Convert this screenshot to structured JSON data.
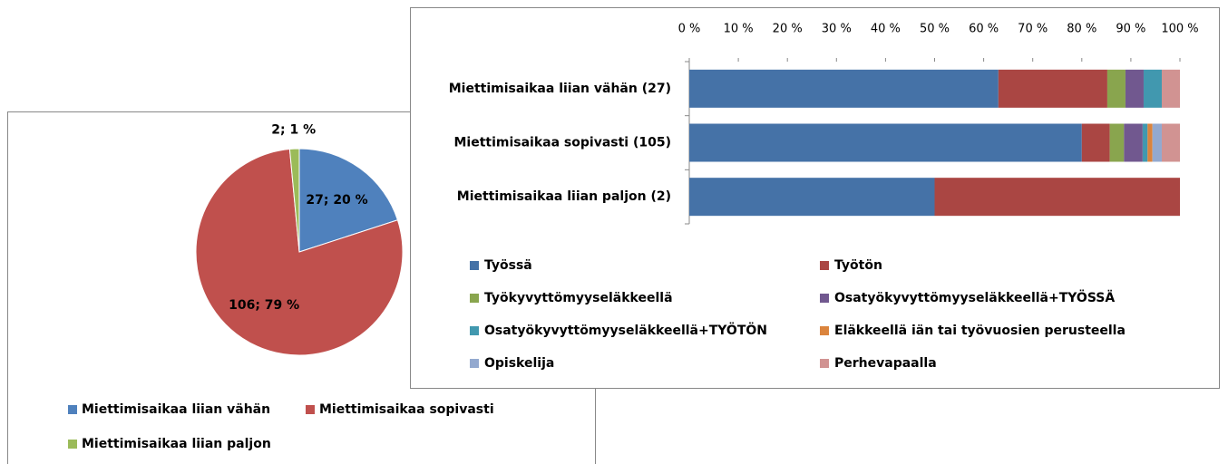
{
  "chart_data": [
    {
      "type": "pie",
      "categories": [
        "Miettimisaikaa liian vähän",
        "Miettimisaikaa sopivasti",
        "Miettimisaikaa liian paljon"
      ],
      "values": [
        27,
        106,
        2
      ],
      "value_labels": [
        "27; 20 %",
        "106; 79 %",
        "2; 1 %"
      ],
      "colors": [
        "#4f81bd",
        "#c0504d",
        "#9bbb59"
      ],
      "legend": "bottom"
    },
    {
      "type": "bar",
      "orientation": "horizontal",
      "stacked": true,
      "categories": [
        "Miettimisaikaa liian vähän (27)",
        "Miettimisaikaa sopivasti (105)",
        "Miettimisaikaa liian paljon (2)"
      ],
      "series": [
        {
          "name": "Työssä",
          "color": "#4572a7",
          "values": [
            63.0,
            80.0,
            50
          ]
        },
        {
          "name": "Työtön",
          "color": "#aa4643",
          "values": [
            22.2,
            5.7,
            50
          ]
        },
        {
          "name": "Työkyvyttömyyseläkkeellä",
          "color": "#89a54e",
          "values": [
            3.7,
            2.9,
            0
          ]
        },
        {
          "name": "Osatyökyvyttömyyseläkkeellä+TYÖSSÄ",
          "color": "#71588f",
          "values": [
            3.7,
            3.8,
            0
          ]
        },
        {
          "name": "Osatyökyvyttömyyseläkkeellä+TYÖTÖN",
          "color": "#4198af",
          "values": [
            3.7,
            1.0,
            0
          ]
        },
        {
          "name": "Eläkkeellä iän tai työvuosien perusteella",
          "color": "#db843d",
          "values": [
            0,
            1.0,
            0
          ]
        },
        {
          "name": "Opiskelija",
          "color": "#93a9cf",
          "values": [
            0,
            1.9,
            0
          ]
        },
        {
          "name": "Perhevapaalla",
          "color": "#d19392",
          "values": [
            3.7,
            3.7,
            0
          ]
        }
      ],
      "xlim": [
        0,
        100
      ],
      "xticks": [
        {
          "value": 0,
          "label": "0 %"
        },
        {
          "value": 10,
          "label": "10 %"
        },
        {
          "value": 20,
          "label": "20 %"
        },
        {
          "value": 30,
          "label": "30 %"
        },
        {
          "value": 40,
          "label": "40 %"
        },
        {
          "value": 50,
          "label": "50 %"
        },
        {
          "value": 60,
          "label": "60 %"
        },
        {
          "value": 70,
          "label": "70 %"
        },
        {
          "value": 80,
          "label": "80 %"
        },
        {
          "value": 90,
          "label": "90 %"
        },
        {
          "value": 100,
          "label": "100 %"
        }
      ],
      "legend": "bottom"
    }
  ]
}
